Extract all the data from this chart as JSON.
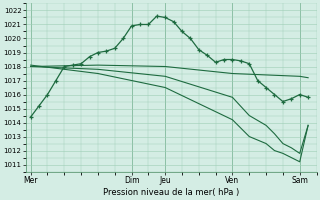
{
  "xlabel": "Pression niveau de la mer( hPa )",
  "ylim": [
    1010.5,
    1022.5
  ],
  "yticks": [
    1011,
    1012,
    1013,
    1014,
    1015,
    1016,
    1017,
    1018,
    1019,
    1020,
    1021,
    1022
  ],
  "bg_color": "#d4ede4",
  "grid_color": "#9ecdb5",
  "line_color": "#1e6b40",
  "day_labels": [
    "Mer",
    "",
    "Dim",
    "Jeu",
    "",
    "Ven",
    "",
    "Sam"
  ],
  "xtick_labels": [
    "Mer",
    "Dim",
    "Jeu",
    "Ven",
    "Sam"
  ],
  "xtick_pos": [
    0,
    6,
    8,
    12,
    16
  ],
  "main_x": [
    0,
    0.5,
    1,
    1.5,
    2,
    2.5,
    3,
    3.5,
    4,
    4.5,
    5,
    5.5,
    6,
    6.5,
    7,
    7.5,
    8,
    8.5,
    9,
    9.5,
    10,
    10.5,
    11,
    11.5,
    12,
    12.5,
    13,
    13.5,
    14,
    14.5,
    15,
    15.5,
    16,
    16.5
  ],
  "main_y": [
    1014.4,
    1015.2,
    1016.0,
    1017.0,
    1018.0,
    1018.1,
    1018.2,
    1018.7,
    1019.0,
    1019.1,
    1019.3,
    1020.0,
    1020.9,
    1021.0,
    1021.0,
    1021.6,
    1021.5,
    1021.2,
    1020.5,
    1020.0,
    1019.2,
    1018.8,
    1018.3,
    1018.5,
    1018.5,
    1018.4,
    1018.2,
    1017.0,
    1016.5,
    1016.0,
    1015.5,
    1015.7,
    1016.0,
    1015.8
  ],
  "line_flat_x": [
    0,
    4,
    8,
    12,
    16,
    16.5
  ],
  "line_flat_y": [
    1018.0,
    1018.1,
    1018.0,
    1017.5,
    1017.3,
    1017.2
  ],
  "line_mid_x": [
    0,
    4,
    8,
    12,
    13,
    14,
    14.5,
    15,
    15.5,
    16,
    16.5
  ],
  "line_mid_y": [
    1018.0,
    1017.8,
    1017.3,
    1015.8,
    1014.5,
    1013.8,
    1013.2,
    1012.5,
    1012.2,
    1011.8,
    1013.8
  ],
  "line_steep_x": [
    0,
    4,
    8,
    12,
    13,
    14,
    14.5,
    15,
    15.5,
    16,
    16.5
  ],
  "line_steep_y": [
    1018.1,
    1017.5,
    1016.5,
    1014.2,
    1013.0,
    1012.5,
    1012.0,
    1011.8,
    1011.5,
    1011.2,
    1013.8
  ]
}
